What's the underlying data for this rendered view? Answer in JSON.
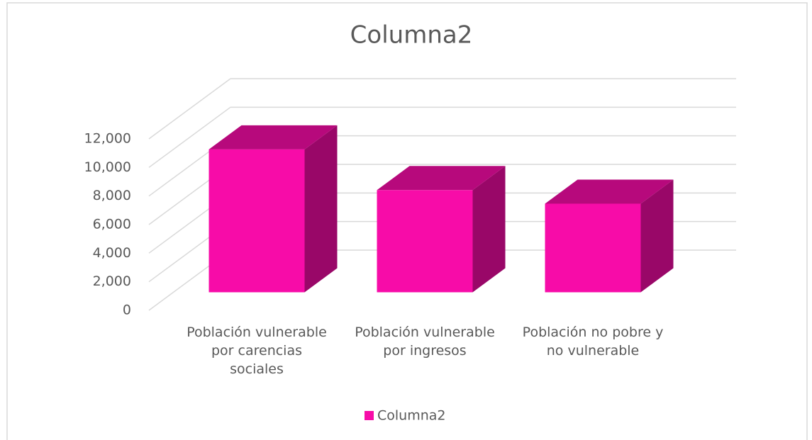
{
  "chart_data": {
    "type": "bar3d",
    "title": "Columna2",
    "categories": [
      "Población vulnerable por carencias sociales",
      "Población vulnerable por ingresos",
      "Población no pobre y no vulnerable"
    ],
    "series": [
      {
        "name": "Columna2",
        "color": "#f70ca8",
        "values": [
          10000,
          7150,
          6200
        ]
      }
    ],
    "ylim": [
      0,
      12000
    ],
    "yticks": [
      0,
      {
        "value": 2000,
        "label": "2,000"
      },
      {
        "value": 4000,
        "label": "4,000"
      },
      {
        "value": 6000,
        "label": "6,000"
      },
      {
        "value": 8000,
        "label": "8,000"
      },
      {
        "value": 10000,
        "label": "10,000"
      },
      {
        "value": 12000,
        "label": "12,000"
      }
    ],
    "grid": true,
    "legend": "bottom"
  }
}
